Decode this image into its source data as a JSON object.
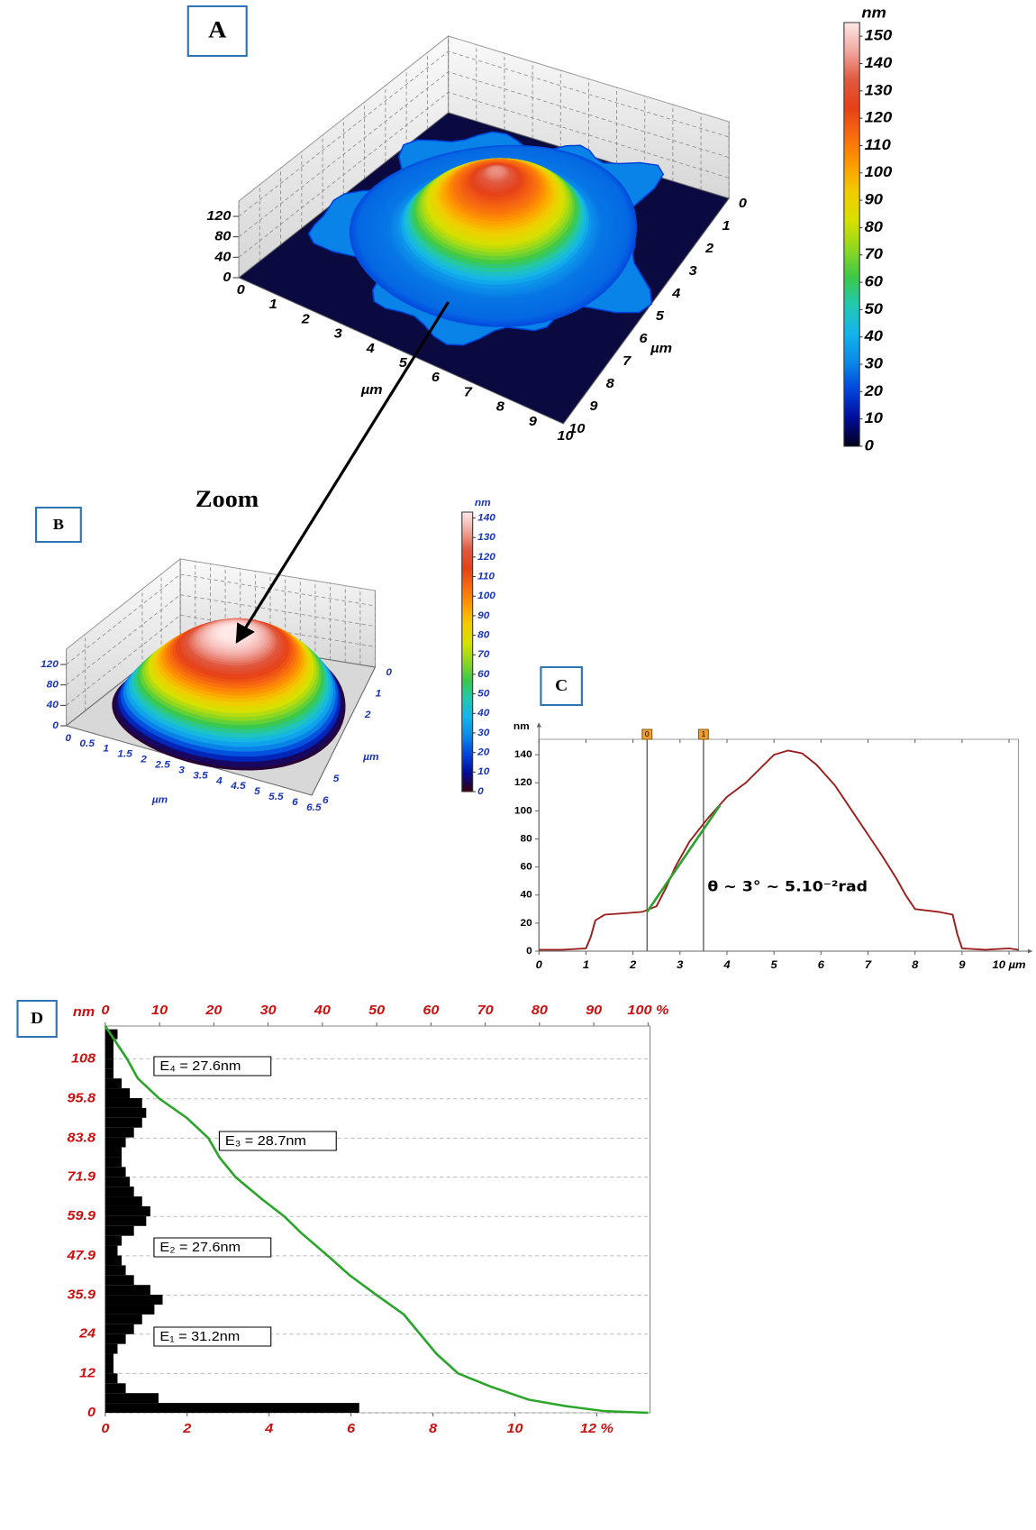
{
  "chart_data": [
    {
      "type": "surface3d",
      "panel_label": "A",
      "xlim": [
        0,
        10
      ],
      "ylim": [
        0,
        10
      ],
      "zlim": [
        0,
        150
      ],
      "xticks": [
        0,
        1,
        2,
        3,
        4,
        5,
        6,
        7,
        8,
        9,
        10
      ],
      "yticks": [
        0,
        1,
        2,
        3,
        4,
        5,
        6,
        7,
        8,
        9,
        10
      ],
      "zticks": [
        0,
        40,
        80,
        120
      ],
      "xlabel": "µm",
      "ylabel": "µm",
      "colorbar": {
        "label": "nm",
        "lim": [
          0,
          155
        ],
        "ticks": [
          0,
          10,
          20,
          30,
          40,
          50,
          60,
          70,
          80,
          90,
          100,
          110,
          120,
          130,
          140,
          150
        ]
      },
      "colormap": [
        "#000018",
        "#000c9a",
        "#0044dd",
        "#0a8ae8",
        "#14b4ec",
        "#22c8b0",
        "#3cc848",
        "#90d820",
        "#d8e000",
        "#f2cc00",
        "#ff9a00",
        "#f86a10",
        "#e64018",
        "#e05a40",
        "#f0a8a0",
        "#ffe8e8"
      ]
    },
    {
      "type": "surface3d",
      "panel_label": "B",
      "annotation": "Zoom",
      "xlim": [
        0,
        6.5
      ],
      "ylim": [
        0,
        6
      ],
      "zlim": [
        0,
        150
      ],
      "xticks": [
        0,
        0.5,
        1,
        1.5,
        2,
        2.5,
        3,
        3.5,
        4,
        4.5,
        5,
        5.5,
        6,
        6.5
      ],
      "yticks": [
        0,
        1,
        2,
        5,
        6
      ],
      "zticks": [
        0,
        40,
        80,
        120
      ],
      "xlabel": "µm",
      "ylabel": "µm",
      "colorbar": {
        "label": "nm",
        "lim": [
          0,
          143
        ],
        "ticks": [
          0,
          10,
          20,
          30,
          40,
          50,
          60,
          70,
          80,
          90,
          100,
          110,
          120,
          130,
          140
        ]
      },
      "colormap": [
        "#3a0008",
        "#000c9a",
        "#0044dd",
        "#0a8ae8",
        "#14b4ec",
        "#22c8b0",
        "#3cc848",
        "#90d820",
        "#d8e000",
        "#f2cc00",
        "#ff9a00",
        "#f86a10",
        "#e64018",
        "#e05a40",
        "#f0a8a0",
        "#ffe8e8"
      ]
    },
    {
      "type": "line",
      "panel_label": "C",
      "x": [
        0,
        0.5,
        1.0,
        1.1,
        1.2,
        1.4,
        1.8,
        2.2,
        2.5,
        2.7,
        2.9,
        3.2,
        3.6,
        4.0,
        4.4,
        4.7,
        5.0,
        5.3,
        5.6,
        5.9,
        6.3,
        6.7,
        7.0,
        7.3,
        7.6,
        7.8,
        8.0,
        8.5,
        8.8,
        8.9,
        9.0,
        9.5,
        10.0,
        10.2
      ],
      "values": [
        1,
        1,
        2,
        10,
        22,
        26,
        27,
        28,
        32,
        45,
        60,
        78,
        95,
        110,
        120,
        130,
        140,
        143,
        141,
        133,
        118,
        98,
        83,
        68,
        52,
        40,
        30,
        28,
        26,
        12,
        2,
        1,
        2,
        1
      ],
      "color": "#9b1c1c",
      "xlim": [
        0,
        10.2
      ],
      "ylim": [
        0,
        151
      ],
      "xticks": [
        0,
        1,
        2,
        3,
        4,
        5,
        6,
        7,
        8,
        9,
        {
          "value": 10,
          "label": "10 µm"
        }
      ],
      "yticks": [
        0,
        20,
        40,
        60,
        80,
        100,
        120,
        140
      ],
      "ylabel": "nm",
      "cursors": [
        {
          "label": "0",
          "x": 2.3
        },
        {
          "label": "1",
          "x": 3.5
        }
      ],
      "tangent": {
        "x": [
          2.3,
          3.85
        ],
        "y": [
          28,
          104
        ],
        "color": "#2ea02e"
      },
      "annotation": "θ ~ 3° ~ 5.10⁻²rad"
    },
    {
      "type": "histogram",
      "panel_label": "D",
      "orientation": "horizontal",
      "bins": [
        0,
        3,
        6,
        9,
        12,
        15,
        18,
        21,
        24,
        27,
        30,
        33,
        36,
        39,
        42,
        45,
        48,
        51,
        54,
        57,
        60,
        63,
        66,
        69,
        72,
        75,
        78,
        81,
        84,
        87,
        90,
        93,
        96,
        99,
        102,
        105,
        108,
        111,
        114,
        117
      ],
      "values": [
        6.2,
        1.3,
        0.5,
        0.3,
        0.2,
        0.2,
        0.3,
        0.5,
        0.7,
        0.9,
        1.2,
        1.4,
        1.1,
        0.7,
        0.5,
        0.4,
        0.3,
        0.4,
        0.7,
        1.0,
        1.1,
        0.9,
        0.7,
        0.6,
        0.5,
        0.4,
        0.4,
        0.5,
        0.7,
        0.9,
        1.0,
        0.9,
        0.6,
        0.4,
        0.2,
        0.2,
        0.2,
        0.2,
        0.3
      ],
      "color": "#000000",
      "xlim": [
        0,
        13.3
      ],
      "xticks": [
        0,
        2,
        4,
        6,
        8,
        10,
        {
          "value": 12,
          "label": "12 %"
        }
      ],
      "x2lim": [
        0,
        100
      ],
      "x2ticks": [
        0,
        10,
        20,
        30,
        40,
        50,
        60,
        70,
        80,
        90,
        {
          "value": 100,
          "label": "100 %"
        }
      ],
      "ylim": [
        0,
        118
      ],
      "yticks": [
        0,
        12,
        24,
        35.9,
        47.9,
        59.9,
        71.9,
        83.8,
        95.8,
        108
      ],
      "ylabel": "nm",
      "grid": true,
      "cumulative": {
        "axis": "x2",
        "color": "#2aa52a",
        "levels": [
          118,
          113,
          108,
          102,
          95.8,
          90,
          83.8,
          78,
          71.9,
          65,
          59.9,
          55,
          47.9,
          42,
          35.9,
          30,
          24,
          18,
          12,
          8,
          4,
          2,
          0.5,
          0
        ],
        "values": [
          0,
          2,
          4,
          6,
          10,
          15,
          19,
          21,
          24,
          29,
          33,
          36,
          41,
          45,
          50,
          55,
          58,
          61,
          65,
          71,
          78,
          85,
          92,
          100
        ]
      },
      "annotations": [
        "E₄ = 27.6nm",
        "E₃ = 28.7nm",
        "E₂ = 27.6nm",
        "E₁ = 31.2nm"
      ]
    }
  ]
}
